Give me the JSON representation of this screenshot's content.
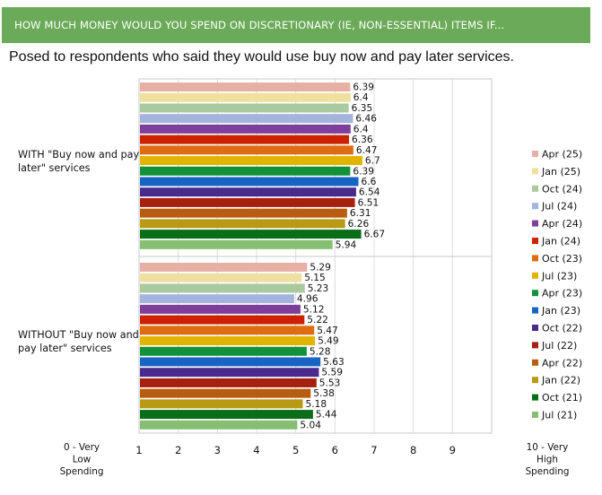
{
  "header": {
    "title": "HOW MUCH MONEY WOULD YOU SPEND ON DISCRETIONARY (IE, NON-ESSENTIAL) ITEMS IF...",
    "subtitle": "Posed to respondents who said they would use buy now and pay later services."
  },
  "chart_data": {
    "type": "bar",
    "orientation": "horizontal",
    "categories": [
      "WITH \"Buy now and pay later\" services",
      "WITHOUT \"Buy now and pay later\" services"
    ],
    "category_lines": [
      [
        "WITH \"Buy now and pay",
        "later\" services"
      ],
      [
        "WITHOUT \"Buy now and",
        "pay later\" services"
      ]
    ],
    "xlim": [
      1,
      10
    ],
    "xticks": [
      "1",
      "2",
      "3",
      "4",
      "5",
      "6",
      "7",
      "8",
      "9"
    ],
    "x_start_label": [
      "0 - Very",
      "Low",
      "Spending"
    ],
    "x_end_label": [
      "10 - Very",
      "High",
      "Spending"
    ],
    "legend_position": "right",
    "grid": true,
    "series": [
      {
        "name": "Apr (25)",
        "color": "#e6b0a6",
        "values": [
          6.39,
          5.29
        ]
      },
      {
        "name": "Jan (25)",
        "color": "#efe0a0",
        "values": [
          6.4,
          5.15
        ]
      },
      {
        "name": "Oct (24)",
        "color": "#a9c99e",
        "values": [
          6.35,
          5.23
        ]
      },
      {
        "name": "Jul (24)",
        "color": "#a4b4dc",
        "values": [
          6.46,
          4.96
        ]
      },
      {
        "name": "Apr (24)",
        "color": "#7d3f99",
        "values": [
          6.4,
          5.12
        ]
      },
      {
        "name": "Jan (24)",
        "color": "#cc2200",
        "values": [
          6.36,
          5.22
        ]
      },
      {
        "name": "Oct (23)",
        "color": "#e06c12",
        "values": [
          6.47,
          5.47
        ]
      },
      {
        "name": "Jul (23)",
        "color": "#e0b400",
        "values": [
          6.7,
          5.49
        ]
      },
      {
        "name": "Apr (23)",
        "color": "#13913a",
        "values": [
          6.39,
          5.28
        ]
      },
      {
        "name": "Jan (23)",
        "color": "#1764c2",
        "values": [
          6.6,
          5.63
        ]
      },
      {
        "name": "Oct (22)",
        "color": "#4a2a8c",
        "values": [
          6.54,
          5.59
        ]
      },
      {
        "name": "Jul (22)",
        "color": "#a5200f",
        "values": [
          6.51,
          5.53
        ]
      },
      {
        "name": "Apr (22)",
        "color": "#b85c11",
        "values": [
          6.31,
          5.38
        ]
      },
      {
        "name": "Jan (22)",
        "color": "#b89a14",
        "values": [
          6.26,
          5.18
        ]
      },
      {
        "name": "Oct (21)",
        "color": "#0a6e18",
        "values": [
          6.67,
          5.44
        ]
      },
      {
        "name": "Jul (21)",
        "color": "#86bf72",
        "values": [
          5.94,
          5.04
        ]
      }
    ]
  }
}
